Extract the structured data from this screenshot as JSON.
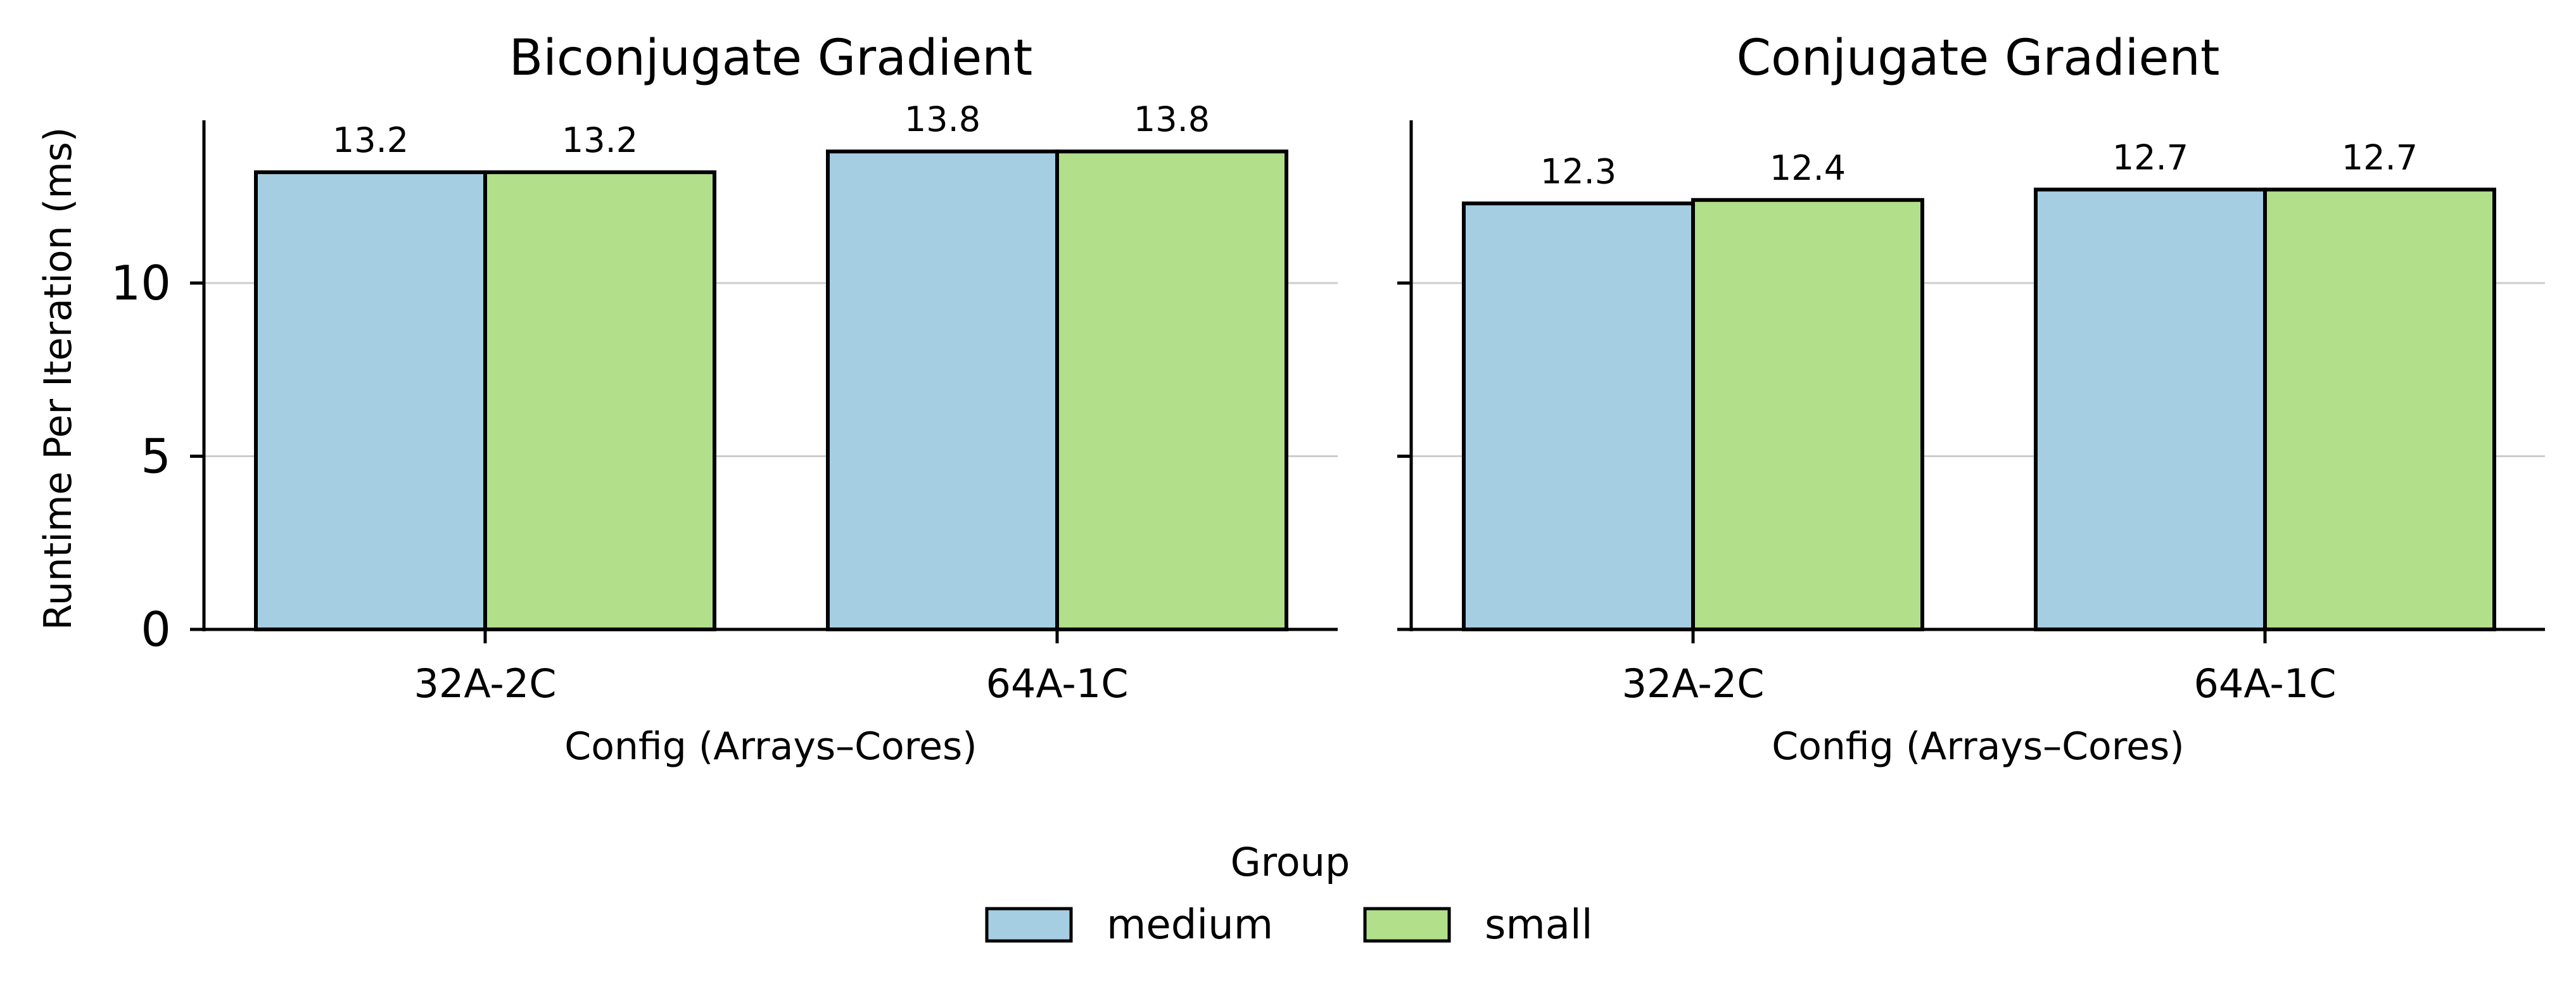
{
  "chart_data": [
    {
      "type": "bar",
      "title": "Biconjugate Gradient",
      "xlabel": "Config (Arrays–Cores)",
      "ylabel": "Runtime Per Iteration (ms)",
      "categories": [
        "32A-2C",
        "64A-1C"
      ],
      "series": [
        {
          "name": "medium",
          "values": [
            13.2,
            13.8
          ],
          "labels": [
            "13.2",
            "13.8"
          ]
        },
        {
          "name": "small",
          "values": [
            13.2,
            13.8
          ],
          "labels": [
            "13.2",
            "13.8"
          ]
        }
      ],
      "ylim": [
        0,
        14.7
      ],
      "yticks": [
        "0",
        "5",
        "10"
      ],
      "grid": "horizontal"
    },
    {
      "type": "bar",
      "title": "Conjugate Gradient",
      "xlabel": "Config (Arrays–Cores)",
      "ylabel": "",
      "categories": [
        "32A-2C",
        "64A-1C"
      ],
      "series": [
        {
          "name": "medium",
          "values": [
            12.3,
            12.7
          ],
          "labels": [
            "12.3",
            "12.7"
          ]
        },
        {
          "name": "small",
          "values": [
            12.4,
            12.7
          ],
          "labels": [
            "12.4",
            "12.7"
          ]
        }
      ],
      "ylim": [
        0,
        14.7
      ],
      "yticks": [
        "0",
        "5",
        "10"
      ],
      "grid": "horizontal"
    }
  ],
  "legend": {
    "title": "Group",
    "placement": "bottom-center",
    "items": [
      {
        "label": "medium",
        "color": "#a6cee3"
      },
      {
        "label": "small",
        "color": "#b2df8a"
      }
    ]
  },
  "colors": {
    "medium": "#a6cee3",
    "small": "#b2df8a",
    "edge": "#000000",
    "grid": "#cccccc"
  }
}
